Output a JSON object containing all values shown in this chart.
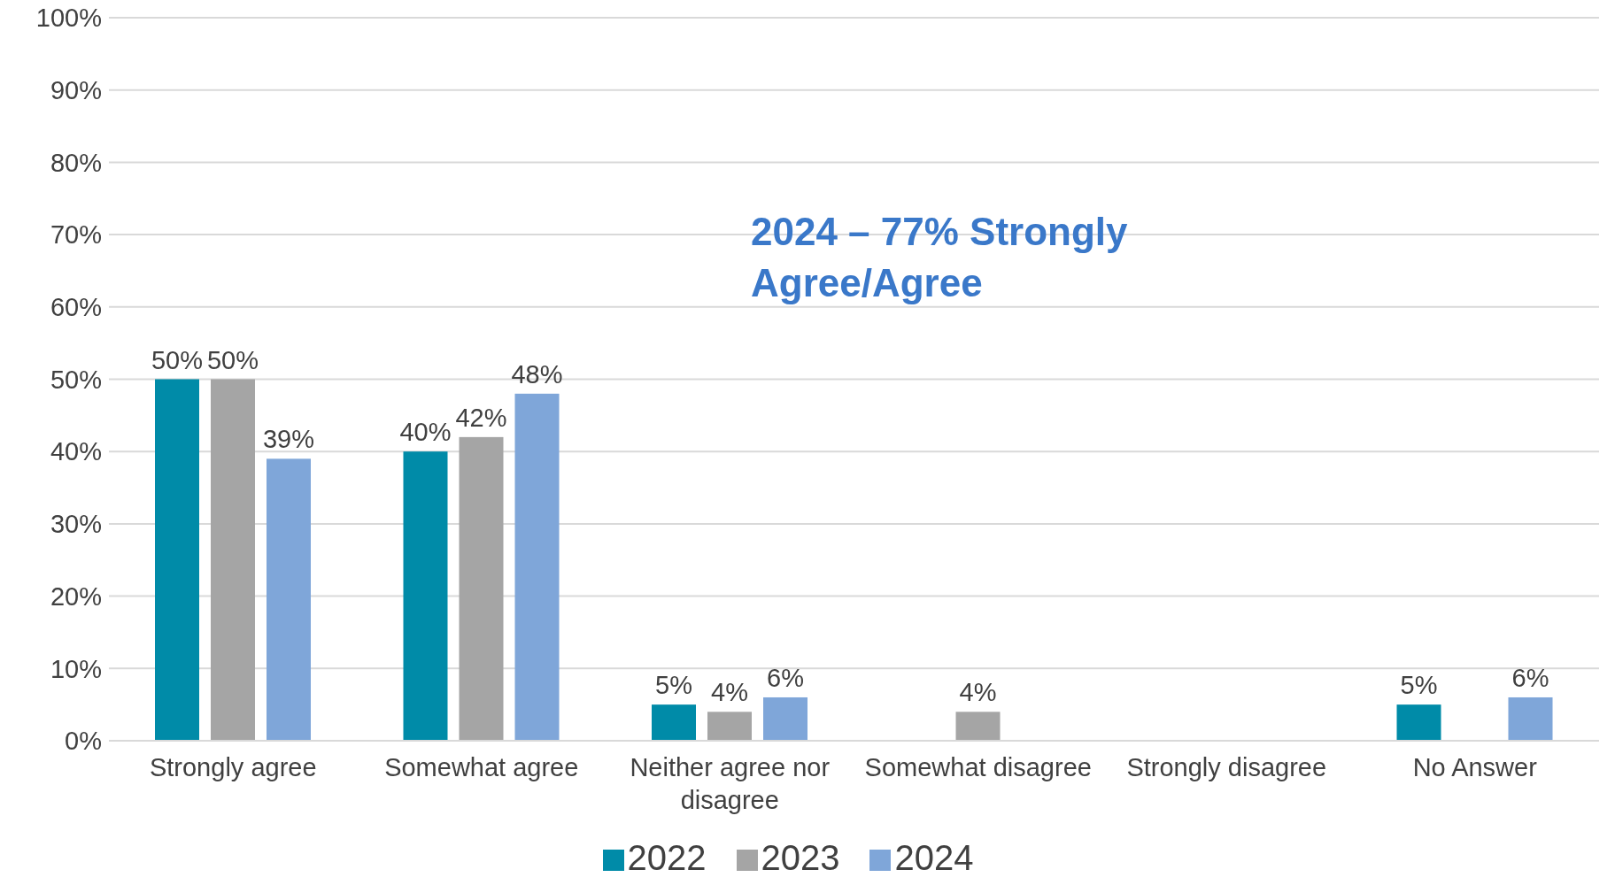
{
  "chart_data": {
    "type": "bar",
    "categories": [
      "Strongly agree",
      "Somewhat agree",
      "Neither agree nor disagree",
      "Somewhat disagree",
      "Strongly disagree",
      "No Answer"
    ],
    "series": [
      {
        "name": "2022",
        "color": "#008ba8",
        "values": [
          50,
          40,
          5,
          null,
          null,
          5
        ],
        "value_labels": [
          "50%",
          "40%",
          "5%",
          null,
          null,
          "5%"
        ]
      },
      {
        "name": "2023",
        "color": "#a5a5a5",
        "values": [
          50,
          42,
          4,
          4,
          null,
          null
        ],
        "value_labels": [
          "50%",
          "42%",
          "4%",
          "4%",
          null,
          null
        ]
      },
      {
        "name": "2024",
        "color": "#7fa6d9",
        "values": [
          39,
          48,
          6,
          null,
          null,
          6
        ],
        "value_labels": [
          "39%",
          "48%",
          "6%",
          null,
          null,
          "6%"
        ]
      }
    ],
    "ylim": [
      0,
      100
    ],
    "yticks": [
      {
        "value": 0,
        "label": "0%"
      },
      {
        "value": 10,
        "label": "10%"
      },
      {
        "value": 20,
        "label": "20%"
      },
      {
        "value": 30,
        "label": "30%"
      },
      {
        "value": 40,
        "label": "40%"
      },
      {
        "value": 50,
        "label": "50%"
      },
      {
        "value": 60,
        "label": "60%"
      },
      {
        "value": 70,
        "label": "70%"
      },
      {
        "value": 80,
        "label": "80%"
      },
      {
        "value": 90,
        "label": "90%"
      },
      {
        "value": 100,
        "label": "100%"
      }
    ],
    "grid": "y",
    "legend": "bottom",
    "annotations": [
      "2024 – 77% Strongly Agree/Agree"
    ]
  }
}
